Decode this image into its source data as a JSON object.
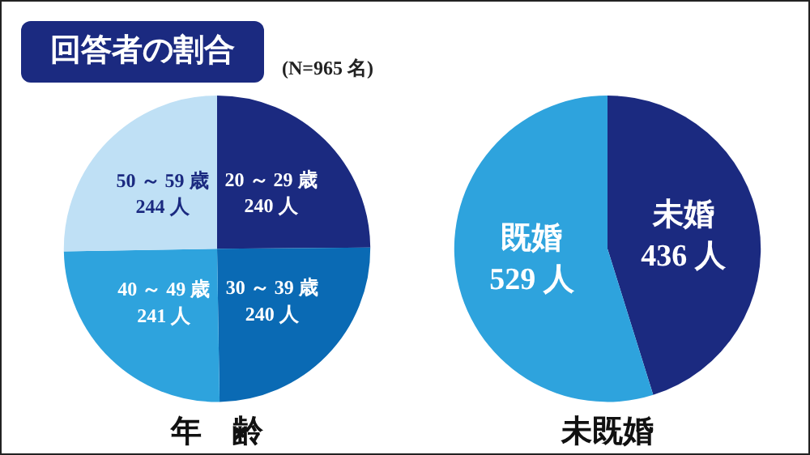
{
  "chart_data": [
    {
      "type": "other",
      "title": "回答者の割合",
      "subtitle": "(N=965 名)"
    },
    {
      "type": "pie",
      "title": "年　齢",
      "categories": [
        "20 ～ 29 歳",
        "30 ～ 39 歳",
        "40 ～ 49 歳",
        "50 ～ 59 歳"
      ],
      "values": [
        240,
        240,
        241,
        244
      ],
      "colors": [
        "#1b2a80",
        "#0a6ab4",
        "#2ea3dd",
        "#bfe0f5"
      ],
      "value_labels": [
        "240 人",
        "240 人",
        "241 人",
        "244 人"
      ]
    },
    {
      "type": "pie",
      "title": "未既婚",
      "categories": [
        "未婚",
        "既婚"
      ],
      "values": [
        436,
        529
      ],
      "colors": [
        "#1b2a80",
        "#2ea3dd"
      ],
      "value_labels": [
        "436 人",
        "529 人"
      ]
    }
  ]
}
